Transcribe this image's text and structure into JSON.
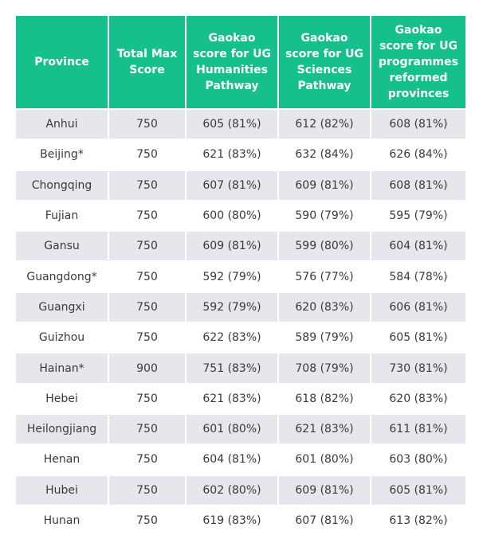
{
  "table": {
    "headers": [
      "Province",
      "Total Max Score",
      "Gaokao score for UG Humanities Pathway",
      "Gaokao score for UG Sciences Pathway",
      "Gaokao score for UG programmes reformed provinces"
    ],
    "rows": [
      [
        "Anhui",
        "750",
        "605 (81%)",
        "612 (82%)",
        "608 (81%)"
      ],
      [
        "Beijing*",
        "750",
        "621 (83%)",
        "632 (84%)",
        "626 (84%)"
      ],
      [
        "Chongqing",
        "750",
        "607 (81%)",
        "609 (81%)",
        "608 (81%)"
      ],
      [
        "Fujian",
        "750",
        "600 (80%)",
        "590 (79%)",
        "595 (79%)"
      ],
      [
        "Gansu",
        "750",
        "609 (81%)",
        "599 (80%)",
        "604 (81%)"
      ],
      [
        "Guangdong*",
        "750",
        "592 (79%)",
        "576 (77%)",
        "584 (78%)"
      ],
      [
        "Guangxi",
        "750",
        "592 (79%)",
        "620 (83%)",
        "606 (81%)"
      ],
      [
        "Guizhou",
        "750",
        "622 (83%)",
        "589 (79%)",
        "605 (81%)"
      ],
      [
        "Hainan*",
        "900",
        "751 (83%)",
        "708 (79%)",
        "730 (81%)"
      ],
      [
        "Hebei",
        "750",
        "621 (83%)",
        "618 (82%)",
        "620 (83%)"
      ],
      [
        "Heilongjiang",
        "750",
        "601 (80%)",
        "621 (83%)",
        "611 (81%)"
      ],
      [
        "Henan",
        "750",
        "604 (81%)",
        "601 (80%)",
        "603 (80%)"
      ],
      [
        "Hubei",
        "750",
        "602 (80%)",
        "609 (81%)",
        "605 (81%)"
      ],
      [
        "Hunan",
        "750",
        "619 (83%)",
        "607 (81%)",
        "613 (82%)"
      ]
    ]
  },
  "colors": {
    "header_bg": "#15c08c",
    "header_text": "#ffffff",
    "row_alt_bg": "#e5e7ec",
    "row_bg": "#ffffff",
    "cell_text": "#3a3a3a"
  }
}
